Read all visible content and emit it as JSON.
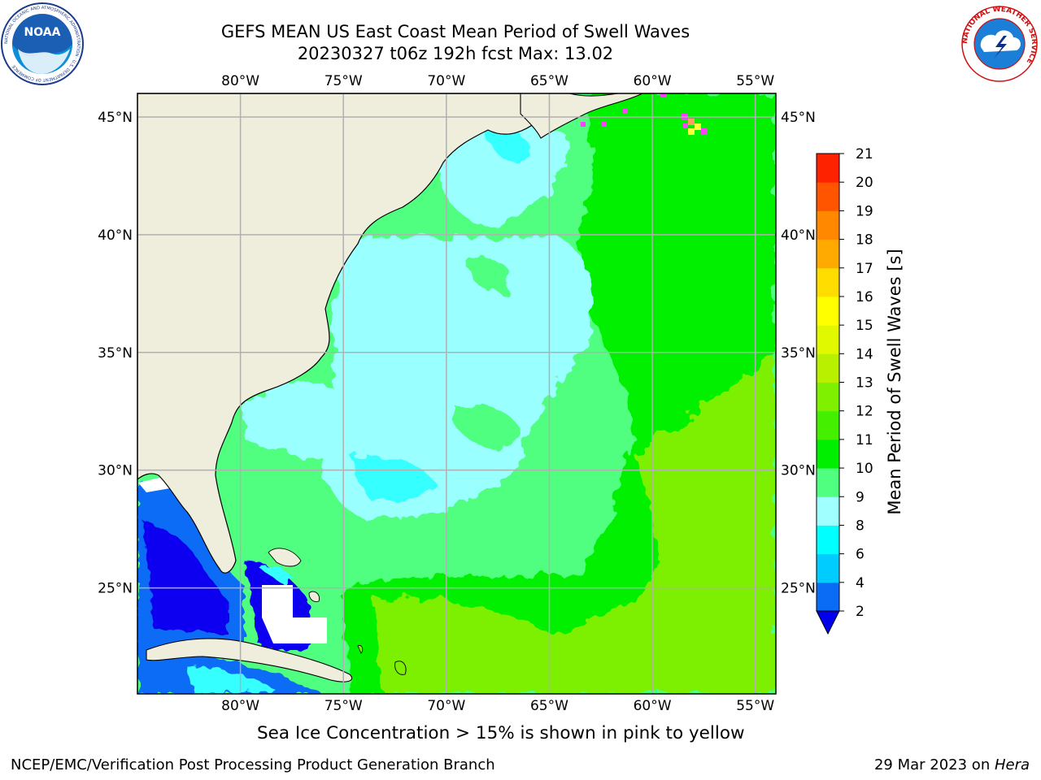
{
  "header": {
    "title_line1": "GEFS MEAN US East Coast Mean Period of Swell Waves",
    "title_line2": "20230327 t06z 192h fcst   Max: 13.02"
  },
  "logos": {
    "left": {
      "name": "noaa-logo",
      "text": "NOAA",
      "ring_text": "NATIONAL OCEANIC AND ATMOSPHERIC ADMINISTRATION · U.S. DEPARTMENT OF COMMERCE"
    },
    "right": {
      "name": "nws-logo",
      "ring_text": "NATIONAL WEATHER SERVICE"
    }
  },
  "map": {
    "projection": "equirectangular",
    "lon_range": [
      -85,
      -54
    ],
    "lat_range": [
      20.5,
      46
    ],
    "lon_ticks": [
      {
        "value": -80,
        "label": "80°W"
      },
      {
        "value": -75,
        "label": "75°W"
      },
      {
        "value": -70,
        "label": "70°W"
      },
      {
        "value": -65,
        "label": "65°W"
      },
      {
        "value": -60,
        "label": "60°W"
      },
      {
        "value": -55,
        "label": "55°W"
      }
    ],
    "lat_ticks": [
      {
        "value": 45,
        "label": "45°N"
      },
      {
        "value": 40,
        "label": "40°N"
      },
      {
        "value": 35,
        "label": "35°N"
      },
      {
        "value": 30,
        "label": "30°N"
      },
      {
        "value": 25,
        "label": "25°N"
      }
    ],
    "grid": true,
    "colors": {
      "land": "#efeddc",
      "gom_deep": "#0d00f0",
      "blue": "#0a6cf5",
      "cyan": "#34ffff",
      "light_cyan": "#99ffff",
      "light_green": "#50ff80",
      "green": "#00f000",
      "yellow_green": "#7cf000",
      "gridline": "#b0b0b0"
    }
  },
  "colorbar": {
    "label": "Mean Period of Swell Waves [s]",
    "tick_labels": [
      "2",
      "4",
      "6",
      "8",
      "9",
      "10",
      "11",
      "12",
      "13",
      "14",
      "15",
      "16",
      "17",
      "18",
      "19",
      "20",
      "21"
    ],
    "colors": [
      "#0a6cf5",
      "#00ccff",
      "#00ffff",
      "#a0ffff",
      "#50ff80",
      "#00ee00",
      "#44f000",
      "#7ef000",
      "#b8f000",
      "#e0f800",
      "#ffff00",
      "#ffdd00",
      "#ffaa00",
      "#ff8800",
      "#ff5500",
      "#ff2200"
    ],
    "extend_color": "#0000ee"
  },
  "chart_data": {
    "type": "heatmap",
    "title": "GEFS MEAN US East Coast Mean Period of Swell Waves",
    "subtitle": "20230327 t06z 192h fcst   Max: 13.02",
    "xlim": [
      -85,
      -54
    ],
    "ylim": [
      20.5,
      46
    ],
    "colorbar_label": "Mean Period of Swell Waves [s]",
    "levels": [
      2,
      4,
      6,
      8,
      9,
      10,
      11,
      12,
      13,
      14,
      15,
      16,
      17,
      18,
      19,
      20,
      21
    ],
    "max": 13.02
  },
  "notes": {
    "sea_ice": "Sea Ice Concentration > 15% is shown in pink to yellow"
  },
  "footer": {
    "left": "NCEP/EMC/Verification Post Processing Product Generation Branch",
    "date": "29 Mar 2023 on ",
    "machine": "Hera"
  }
}
